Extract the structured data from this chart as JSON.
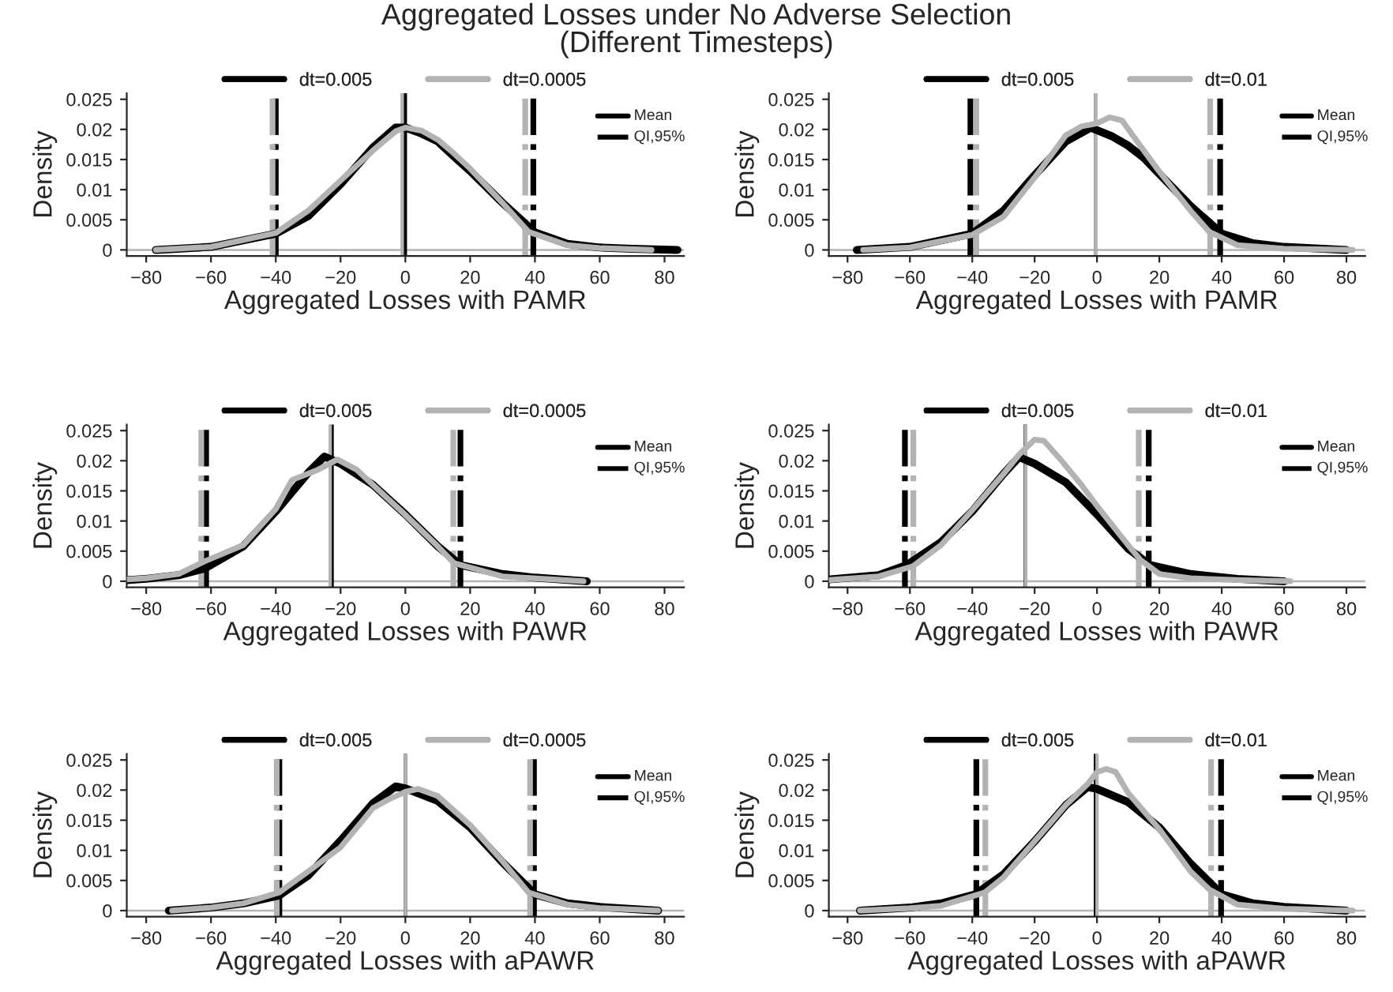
{
  "chart_data": [
    {
      "type": "line",
      "title": "Aggregated Losses under No Adverse Selection\n(Different Timesteps)",
      "xlabel": "Aggregated Losses with PAMR",
      "ylabel": "Density",
      "xlim": [
        -86,
        86
      ],
      "xticks": [
        {
          "value": -80,
          "label": "−80"
        },
        {
          "value": -60,
          "label": "−60"
        },
        {
          "value": -40,
          "label": "−40"
        },
        {
          "value": -20,
          "label": "−20"
        },
        0,
        20,
        40,
        60,
        80
      ],
      "ylim": [
        -0.001,
        0.026
      ],
      "yticks": [
        0,
        0.005,
        0.01,
        0.015,
        0.02,
        0.025
      ],
      "legend": "top",
      "grid": false,
      "line_style": "solid",
      "marker": "none",
      "annotations": [
        "Mean",
        "QI,95%"
      ],
      "series": [
        {
          "name": "dt=0.005",
          "color": "#000000",
          "x": [
            -77,
            -60,
            -40,
            -30,
            -20,
            -10,
            -3,
            0,
            5,
            10,
            15,
            20,
            30,
            40,
            50,
            60,
            70,
            84
          ],
          "values": [
            0,
            0.0005,
            0.0027,
            0.0056,
            0.0109,
            0.017,
            0.0203,
            0.0203,
            0.0193,
            0.018,
            0.0155,
            0.0131,
            0.0078,
            0.0029,
            0.001,
            0.0004,
            0.0002,
            0
          ]
        },
        {
          "name": "dt=0.0005",
          "color": "#b3b3b3",
          "x": [
            -77,
            -60,
            -40,
            -30,
            -20,
            -10,
            -3,
            0,
            5,
            10,
            15,
            20,
            30,
            38,
            50,
            60,
            76
          ],
          "values": [
            0,
            0.0005,
            0.0028,
            0.0065,
            0.0115,
            0.0165,
            0.0197,
            0.0203,
            0.0198,
            0.0183,
            0.016,
            0.0135,
            0.0078,
            0.003,
            0.0008,
            0.0003,
            0
          ]
        }
      ],
      "ref_lines": [
        {
          "axis": "y",
          "value": 0,
          "color": "#b3b3b3",
          "line_style": "solid"
        },
        {
          "axis": "x",
          "value": 0,
          "color": "#000000",
          "line_style": "solid"
        },
        {
          "axis": "x",
          "value": -40,
          "color": "#000000",
          "line_style": "dashed"
        },
        {
          "axis": "x",
          "value": 39.5,
          "color": "#000000",
          "line_style": "dashed"
        },
        {
          "axis": "x",
          "value": -1,
          "color": "#b3b3b3",
          "line_style": "solid"
        },
        {
          "axis": "x",
          "value": -41,
          "color": "#b3b3b3",
          "line_style": "dashed"
        },
        {
          "axis": "x",
          "value": 37,
          "color": "#b3b3b3",
          "line_style": "dashed"
        }
      ]
    },
    {
      "type": "line",
      "xlabel": "Aggregated Losses with PAMR",
      "ylabel": "Density",
      "xlim": [
        -86,
        86
      ],
      "xticks": [
        {
          "value": -80,
          "label": "−80"
        },
        {
          "value": -60,
          "label": "−60"
        },
        {
          "value": -40,
          "label": "−40"
        },
        {
          "value": -20,
          "label": "−20"
        },
        0,
        20,
        40,
        60,
        80
      ],
      "ylim": [
        -0.001,
        0.026
      ],
      "yticks": [
        0,
        0.005,
        0.01,
        0.015,
        0.02,
        0.025
      ],
      "legend": "top",
      "grid": false,
      "line_style": "solid",
      "marker": "none",
      "annotations": [
        "Mean",
        "QI,95%"
      ],
      "series": [
        {
          "name": "dt=0.005",
          "color": "#000000",
          "x": [
            -77,
            -60,
            -40,
            -30,
            -20,
            -10,
            -2,
            5,
            10,
            15,
            20,
            30,
            40,
            50,
            60,
            80
          ],
          "values": [
            0,
            0.0005,
            0.0027,
            0.0065,
            0.0124,
            0.018,
            0.0203,
            0.0188,
            0.0173,
            0.0153,
            0.0126,
            0.0073,
            0.0027,
            0.0011,
            0.0005,
            0
          ]
        },
        {
          "name": "dt=0.01",
          "color": "#b3b3b3",
          "x": [
            -75,
            -60,
            -40,
            -30,
            -20,
            -10,
            -5,
            0,
            4,
            8,
            15,
            20,
            30,
            36,
            45,
            60,
            82
          ],
          "values": [
            0,
            0.0004,
            0.0025,
            0.0055,
            0.012,
            0.019,
            0.0205,
            0.021,
            0.022,
            0.0215,
            0.0165,
            0.013,
            0.0065,
            0.003,
            0.0008,
            0.0002,
            0
          ]
        }
      ],
      "ref_lines": [
        {
          "axis": "y",
          "value": 0,
          "color": "#b3b3b3",
          "line_style": "solid"
        },
        {
          "axis": "x",
          "value": -0.5,
          "color": "#000000",
          "line_style": "solid"
        },
        {
          "axis": "x",
          "value": -40.6,
          "color": "#000000",
          "line_style": "dashed"
        },
        {
          "axis": "x",
          "value": 39.5,
          "color": "#000000",
          "line_style": "dashed"
        },
        {
          "axis": "x",
          "value": -0.5,
          "color": "#b3b3b3",
          "line_style": "solid"
        },
        {
          "axis": "x",
          "value": -38.7,
          "color": "#b3b3b3",
          "line_style": "dashed"
        },
        {
          "axis": "x",
          "value": 36.3,
          "color": "#b3b3b3",
          "line_style": "dashed"
        }
      ]
    },
    {
      "type": "line",
      "xlabel": "Aggregated Losses with PAWR",
      "ylabel": "Density",
      "xlim": [
        -86,
        86
      ],
      "xticks": [
        {
          "value": -80,
          "label": "−80"
        },
        {
          "value": -60,
          "label": "−60"
        },
        {
          "value": -40,
          "label": "−40"
        },
        {
          "value": -20,
          "label": "−20"
        },
        0,
        20,
        40,
        60,
        80
      ],
      "ylim": [
        -0.001,
        0.026
      ],
      "yticks": [
        0,
        0.005,
        0.01,
        0.015,
        0.02,
        0.025
      ],
      "legend": "top",
      "grid": false,
      "line_style": "solid",
      "marker": "none",
      "annotations": [
        "Mean",
        "QI,95%"
      ],
      "series": [
        {
          "name": "dt=0.005",
          "color": "#000000",
          "x": [
            -86,
            -80,
            -70,
            -62,
            -50,
            -40,
            -30,
            -25,
            -20,
            -10,
            0,
            10,
            17,
            30,
            40,
            56
          ],
          "values": [
            0.0002,
            0.0004,
            0.001,
            0.0021,
            0.0058,
            0.0116,
            0.018,
            0.0207,
            0.0195,
            0.016,
            0.0111,
            0.0058,
            0.0027,
            0.0012,
            0.0006,
            0
          ]
        },
        {
          "name": "dt=0.0005",
          "color": "#b3b3b3",
          "x": [
            -86,
            -80,
            -70,
            -62,
            -50,
            -40,
            -35,
            -27,
            -21,
            -15,
            -10,
            0,
            10,
            15,
            30,
            55
          ],
          "values": [
            0.0003,
            0.0005,
            0.0012,
            0.0033,
            0.006,
            0.012,
            0.0168,
            0.0185,
            0.0202,
            0.0185,
            0.016,
            0.011,
            0.0058,
            0.003,
            0.0008,
            0
          ]
        }
      ],
      "ref_lines": [
        {
          "axis": "y",
          "value": 0,
          "color": "#b3b3b3",
          "line_style": "solid"
        },
        {
          "axis": "x",
          "value": -22.6,
          "color": "#000000",
          "line_style": "solid"
        },
        {
          "axis": "x",
          "value": -61.5,
          "color": "#000000",
          "line_style": "dashed"
        },
        {
          "axis": "x",
          "value": 17,
          "color": "#000000",
          "line_style": "dashed"
        },
        {
          "axis": "x",
          "value": -23.2,
          "color": "#b3b3b3",
          "line_style": "solid"
        },
        {
          "axis": "x",
          "value": -63,
          "color": "#b3b3b3",
          "line_style": "dashed"
        },
        {
          "axis": "x",
          "value": 14.8,
          "color": "#b3b3b3",
          "line_style": "dashed"
        }
      ]
    },
    {
      "type": "line",
      "xlabel": "Aggregated Losses with PAWR",
      "ylabel": "Density",
      "xlim": [
        -86,
        86
      ],
      "xticks": [
        {
          "value": -80,
          "label": "−80"
        },
        {
          "value": -60,
          "label": "−60"
        },
        {
          "value": -40,
          "label": "−40"
        },
        {
          "value": -20,
          "label": "−20"
        },
        0,
        20,
        40,
        60,
        80
      ],
      "ylim": [
        -0.001,
        0.026
      ],
      "yticks": [
        0,
        0.005,
        0.01,
        0.015,
        0.02,
        0.025
      ],
      "legend": "top",
      "grid": false,
      "line_style": "solid",
      "marker": "none",
      "annotations": [
        "Mean",
        "QI,95%"
      ],
      "series": [
        {
          "name": "dt=0.005",
          "color": "#000000",
          "x": [
            -86,
            -70,
            -61,
            -50,
            -40,
            -30,
            -25,
            -20,
            -10,
            0,
            10,
            17,
            30,
            45,
            60
          ],
          "values": [
            0.0003,
            0.001,
            0.0027,
            0.0065,
            0.0116,
            0.0178,
            0.0206,
            0.0195,
            0.0164,
            0.0111,
            0.0054,
            0.0027,
            0.0012,
            0.0004,
            0
          ]
        },
        {
          "name": "dt=0.01",
          "color": "#b3b3b3",
          "x": [
            -86,
            -70,
            -59,
            -50,
            -40,
            -30,
            -25,
            -20,
            -17,
            -12,
            -5,
            0,
            10,
            14,
            20,
            30,
            45,
            62
          ],
          "values": [
            0.0002,
            0.0008,
            0.0025,
            0.006,
            0.0118,
            0.0178,
            0.021,
            0.0235,
            0.0233,
            0.0204,
            0.016,
            0.0125,
            0.006,
            0.0035,
            0.0012,
            0.0005,
            0.0002,
            0
          ]
        }
      ],
      "ref_lines": [
        {
          "axis": "y",
          "value": 0,
          "color": "#b3b3b3",
          "line_style": "solid"
        },
        {
          "axis": "x",
          "value": -23,
          "color": "#000000",
          "line_style": "solid"
        },
        {
          "axis": "x",
          "value": -61.6,
          "color": "#000000",
          "line_style": "dashed"
        },
        {
          "axis": "x",
          "value": 16.6,
          "color": "#000000",
          "line_style": "dashed"
        },
        {
          "axis": "x",
          "value": -22.9,
          "color": "#b3b3b3",
          "line_style": "solid"
        },
        {
          "axis": "x",
          "value": -58.9,
          "color": "#b3b3b3",
          "line_style": "dashed"
        },
        {
          "axis": "x",
          "value": 13.4,
          "color": "#b3b3b3",
          "line_style": "dashed"
        }
      ]
    },
    {
      "type": "line",
      "xlabel": "Aggregated Losses with aPAWR",
      "ylabel": "Density",
      "xlim": [
        -86,
        86
      ],
      "xticks": [
        {
          "value": -80,
          "label": "−80"
        },
        {
          "value": -60,
          "label": "−60"
        },
        {
          "value": -40,
          "label": "−40"
        },
        {
          "value": -20,
          "label": "−20"
        },
        0,
        20,
        40,
        60,
        80
      ],
      "ylim": [
        -0.001,
        0.026
      ],
      "yticks": [
        0,
        0.005,
        0.01,
        0.015,
        0.02,
        0.025
      ],
      "legend": "top",
      "grid": false,
      "line_style": "solid",
      "marker": "none",
      "annotations": [
        "Mean",
        "QI,95%"
      ],
      "series": [
        {
          "name": "dt=0.005",
          "color": "#000000",
          "x": [
            -73,
            -60,
            -50,
            -39,
            -30,
            -20,
            -10,
            -3,
            0,
            10,
            20,
            30,
            40,
            50,
            60,
            78
          ],
          "values": [
            0,
            0.0005,
            0.0012,
            0.0025,
            0.0058,
            0.0116,
            0.0178,
            0.0206,
            0.0203,
            0.0182,
            0.0138,
            0.008,
            0.0027,
            0.0012,
            0.0006,
            0
          ]
        },
        {
          "name": "dt=0.0005",
          "color": "#b3b3b3",
          "x": [
            -72,
            -60,
            -50,
            -39,
            -30,
            -20,
            -10,
            -5,
            0,
            4,
            10,
            20,
            30,
            38,
            50,
            60,
            78
          ],
          "values": [
            0,
            0.0005,
            0.0012,
            0.003,
            0.0065,
            0.0105,
            0.017,
            0.0185,
            0.0197,
            0.0202,
            0.019,
            0.0142,
            0.0082,
            0.003,
            0.001,
            0.0004,
            0
          ]
        }
      ],
      "ref_lines": [
        {
          "axis": "y",
          "value": 0,
          "color": "#b3b3b3",
          "line_style": "solid"
        },
        {
          "axis": "x",
          "value": 0,
          "color": "#000000",
          "line_style": "solid"
        },
        {
          "axis": "x",
          "value": -38.9,
          "color": "#000000",
          "line_style": "dashed"
        },
        {
          "axis": "x",
          "value": 39.7,
          "color": "#000000",
          "line_style": "dashed"
        },
        {
          "axis": "x",
          "value": 0,
          "color": "#b3b3b3",
          "line_style": "solid"
        },
        {
          "axis": "x",
          "value": -39.7,
          "color": "#b3b3b3",
          "line_style": "dashed"
        },
        {
          "axis": "x",
          "value": 38.5,
          "color": "#b3b3b3",
          "line_style": "dashed"
        }
      ]
    },
    {
      "type": "line",
      "xlabel": "Aggregated Losses with aPAWR",
      "ylabel": "Density",
      "xlim": [
        -86,
        86
      ],
      "xticks": [
        {
          "value": -80,
          "label": "−80"
        },
        {
          "value": -60,
          "label": "−60"
        },
        {
          "value": -40,
          "label": "−40"
        },
        {
          "value": -20,
          "label": "−20"
        },
        0,
        20,
        40,
        60,
        80
      ],
      "ylim": [
        -0.001,
        0.026
      ],
      "yticks": [
        0,
        0.005,
        0.01,
        0.015,
        0.02,
        0.025
      ],
      "legend": "top",
      "grid": false,
      "line_style": "solid",
      "marker": "none",
      "annotations": [
        "Mean",
        "QI,95%"
      ],
      "series": [
        {
          "name": "dt=0.005",
          "color": "#000000",
          "x": [
            -76,
            -60,
            -50,
            -39,
            -30,
            -20,
            -10,
            -3,
            0,
            10,
            20,
            30,
            40,
            50,
            60,
            80
          ],
          "values": [
            0,
            0.0005,
            0.0012,
            0.0027,
            0.006,
            0.0115,
            0.0175,
            0.0205,
            0.0202,
            0.018,
            0.0138,
            0.0078,
            0.0027,
            0.0012,
            0.0006,
            0
          ]
        },
        {
          "name": "dt=0.01",
          "color": "#b3b3b3",
          "x": [
            -76,
            -60,
            -50,
            -36,
            -30,
            -20,
            -10,
            -3,
            0,
            3,
            6,
            10,
            20,
            30,
            36,
            45,
            60,
            82
          ],
          "values": [
            0,
            0.0004,
            0.0008,
            0.003,
            0.0055,
            0.0115,
            0.0175,
            0.021,
            0.023,
            0.0235,
            0.023,
            0.0195,
            0.0135,
            0.0065,
            0.0035,
            0.001,
            0.0003,
            0
          ]
        }
      ],
      "ref_lines": [
        {
          "axis": "y",
          "value": 0,
          "color": "#b3b3b3",
          "line_style": "solid"
        },
        {
          "axis": "x",
          "value": -0.5,
          "color": "#000000",
          "line_style": "solid"
        },
        {
          "axis": "x",
          "value": -38.7,
          "color": "#000000",
          "line_style": "dashed"
        },
        {
          "axis": "x",
          "value": 39.8,
          "color": "#000000",
          "line_style": "dashed"
        },
        {
          "axis": "x",
          "value": 0,
          "color": "#b3b3b3",
          "line_style": "solid"
        },
        {
          "axis": "x",
          "value": -35.8,
          "color": "#b3b3b3",
          "line_style": "dashed"
        },
        {
          "axis": "x",
          "value": 36.6,
          "color": "#b3b3b3",
          "line_style": "dashed"
        }
      ]
    }
  ]
}
